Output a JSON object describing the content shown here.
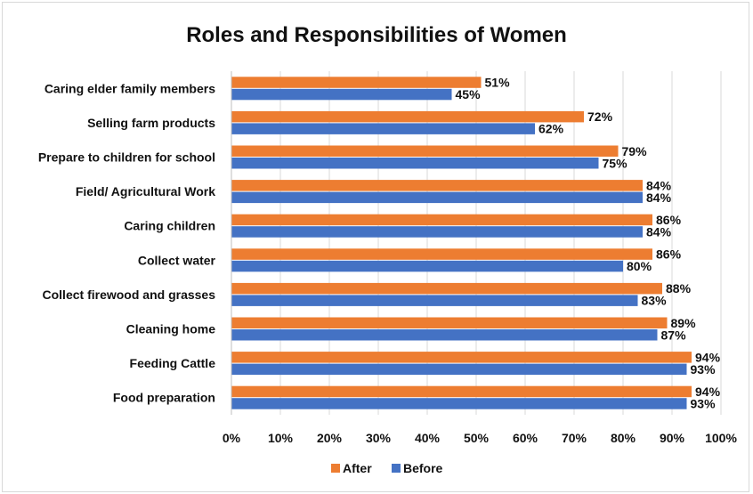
{
  "chart_data": {
    "type": "bar",
    "orientation": "horizontal",
    "title": "Roles and Responsibilities of Women",
    "categories": [
      "Caring elder family members",
      "Selling farm products",
      "Prepare to children for school",
      "Field/ Agricultural Work",
      "Caring children",
      "Collect water",
      "Collect firewood and grasses",
      "Cleaning home",
      "Feeding Cattle",
      "Food preparation"
    ],
    "series": [
      {
        "name": "After",
        "color": "#ed7d31",
        "values": [
          51,
          72,
          79,
          84,
          86,
          86,
          88,
          89,
          94,
          94
        ]
      },
      {
        "name": "Before",
        "color": "#4472c4",
        "values": [
          45,
          62,
          75,
          84,
          84,
          80,
          83,
          87,
          93,
          93
        ]
      }
    ],
    "xlim": [
      0,
      100
    ],
    "xticks": [
      "0%",
      "10%",
      "20%",
      "30%",
      "40%",
      "50%",
      "60%",
      "70%",
      "80%",
      "90%",
      "100%"
    ],
    "value_suffix": "%",
    "grid": true,
    "legend": "bottom"
  }
}
